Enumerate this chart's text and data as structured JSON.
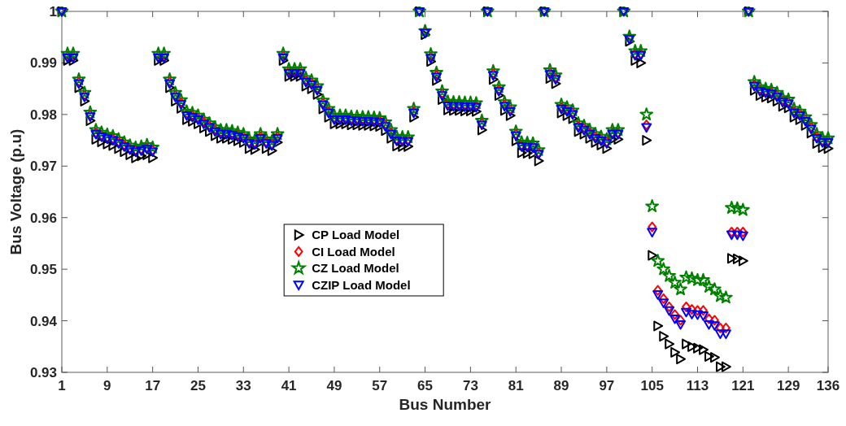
{
  "chart_data": {
    "type": "scatter",
    "xlabel": "Bus Number",
    "ylabel": "Bus Voltage (p.u)",
    "xlim": [
      1,
      136
    ],
    "xticks": [
      1,
      9,
      17,
      25,
      33,
      41,
      49,
      57,
      65,
      73,
      81,
      89,
      97,
      105,
      113,
      121,
      129,
      136
    ],
    "ylim": [
      0.93,
      1
    ],
    "yticks": [
      0.93,
      0.94,
      0.95,
      0.96,
      0.97,
      0.98,
      0.99,
      1
    ],
    "grid": false,
    "legend": "center",
    "x": [
      1,
      2,
      3,
      4,
      5,
      6,
      7,
      8,
      9,
      10,
      11,
      12,
      13,
      14,
      15,
      16,
      17,
      18,
      19,
      20,
      21,
      22,
      23,
      24,
      25,
      26,
      27,
      28,
      29,
      30,
      31,
      32,
      33,
      34,
      35,
      36,
      37,
      38,
      39,
      40,
      41,
      42,
      43,
      44,
      45,
      46,
      47,
      48,
      49,
      50,
      51,
      52,
      53,
      54,
      55,
      56,
      57,
      58,
      59,
      60,
      61,
      62,
      63,
      64,
      65,
      66,
      67,
      68,
      69,
      70,
      71,
      72,
      73,
      74,
      75,
      76,
      77,
      78,
      79,
      80,
      81,
      82,
      83,
      84,
      85,
      86,
      87,
      88,
      89,
      90,
      91,
      92,
      93,
      94,
      95,
      96,
      97,
      98,
      99,
      100,
      101,
      102,
      103,
      104,
      105,
      106,
      107,
      108,
      109,
      110,
      111,
      112,
      113,
      114,
      115,
      116,
      117,
      118,
      119,
      120,
      121,
      122,
      123,
      124,
      125,
      126,
      127,
      128,
      129,
      130,
      131,
      132,
      133,
      134,
      135,
      136
    ],
    "series": [
      {
        "name": "CP Load Model",
        "color": "#000000",
        "marker": "triangle-right",
        "values": [
          1,
          0.9905,
          0.9905,
          0.9852,
          0.9826,
          0.9788,
          0.9752,
          0.9747,
          0.9743,
          0.974,
          0.9734,
          0.9728,
          0.9722,
          0.9716,
          0.972,
          0.9722,
          0.9716,
          0.9905,
          0.9905,
          0.9852,
          0.9826,
          0.9812,
          0.979,
          0.9787,
          0.9782,
          0.9774,
          0.9767,
          0.9759,
          0.9754,
          0.9754,
          0.9752,
          0.9749,
          0.9746,
          0.9734,
          0.9732,
          0.9746,
          0.9734,
          0.973,
          0.9746,
          0.9905,
          0.9874,
          0.9874,
          0.9874,
          0.9855,
          0.985,
          0.9839,
          0.9811,
          0.9795,
          0.9782,
          0.9782,
          0.9782,
          0.978,
          0.978,
          0.9779,
          0.9779,
          0.9778,
          0.9777,
          0.9769,
          0.9754,
          0.9739,
          0.9738,
          0.9738,
          0.9795,
          1,
          0.9955,
          0.9903,
          0.9866,
          0.9829,
          0.9809,
          0.9808,
          0.9808,
          0.9807,
          0.9807,
          0.9806,
          0.977,
          1,
          0.9868,
          0.9837,
          0.9808,
          0.9798,
          0.9749,
          0.9726,
          0.9725,
          0.9724,
          0.971,
          1,
          0.987,
          0.986,
          0.9803,
          0.9798,
          0.9792,
          0.9767,
          0.9762,
          0.9754,
          0.9746,
          0.9741,
          0.9734,
          0.9752,
          0.9752,
          1,
          0.9942,
          0.9905,
          0.99,
          0.975,
          0.9527,
          0.939,
          0.937,
          0.9355,
          0.9339,
          0.9326,
          0.9355,
          0.935,
          0.9347,
          0.9344,
          0.9331,
          0.9329,
          0.9311,
          0.9311,
          0.9521,
          0.952,
          0.9516,
          1,
          0.9847,
          0.9837,
          0.9834,
          0.9832,
          0.9826,
          0.9816,
          0.9813,
          0.9795,
          0.979,
          0.9779,
          0.9764,
          0.9744,
          0.9736,
          0.9734
        ]
      },
      {
        "name": "CI Load Model",
        "color": "#ff0000",
        "marker": "diamond",
        "values": [
          1,
          0.9913,
          0.9913,
          0.9863,
          0.9837,
          0.9799,
          0.9765,
          0.976,
          0.9756,
          0.9753,
          0.9747,
          0.9741,
          0.9735,
          0.9731,
          0.9733,
          0.9736,
          0.9731,
          0.9913,
          0.9913,
          0.9863,
          0.9837,
          0.9823,
          0.9801,
          0.9798,
          0.9793,
          0.9785,
          0.9778,
          0.977,
          0.9765,
          0.9765,
          0.9763,
          0.976,
          0.9757,
          0.9747,
          0.9745,
          0.9757,
          0.9747,
          0.9743,
          0.9757,
          0.9913,
          0.9883,
          0.9883,
          0.9883,
          0.9866,
          0.9861,
          0.985,
          0.9822,
          0.9806,
          0.9793,
          0.9793,
          0.9793,
          0.9791,
          0.9791,
          0.979,
          0.979,
          0.9789,
          0.9788,
          0.978,
          0.9765,
          0.9752,
          0.9751,
          0.9751,
          0.9806,
          null,
          0.996,
          0.9912,
          0.9876,
          0.984,
          0.982,
          0.9819,
          0.9819,
          0.9818,
          0.9818,
          0.9817,
          0.9783,
          1,
          0.9879,
          0.9848,
          0.9819,
          0.9809,
          0.9762,
          0.9741,
          0.974,
          0.9739,
          0.9726,
          1,
          0.9881,
          0.9871,
          0.9814,
          0.9809,
          0.9803,
          0.9778,
          0.9773,
          0.9765,
          0.9757,
          0.9752,
          0.9747,
          0.9765,
          0.9765,
          null,
          0.9948,
          0.9918,
          0.9918,
          0.978,
          0.9582,
          0.9459,
          0.9443,
          0.9427,
          0.9412,
          0.9401,
          0.9427,
          0.9422,
          0.942,
          0.942,
          0.9404,
          0.9401,
          0.9386,
          0.9386,
          0.9572,
          0.9572,
          0.9572,
          1,
          0.9858,
          0.9848,
          0.9845,
          0.9843,
          0.9837,
          0.9827,
          0.9824,
          0.9806,
          0.9801,
          0.979,
          0.9775,
          0.9757,
          0.9749,
          0.9749
        ]
      },
      {
        "name": "CZ Load Model",
        "color": "#008000",
        "marker": "star",
        "values": [
          1,
          0.9918,
          0.9918,
          0.9868,
          0.9842,
          0.9804,
          0.977,
          0.9765,
          0.9761,
          0.9758,
          0.9752,
          0.9746,
          0.974,
          0.9736,
          0.9738,
          0.9741,
          0.9736,
          0.9918,
          0.9918,
          0.9868,
          0.9842,
          0.9828,
          0.9806,
          0.9803,
          0.9798,
          0.979,
          0.9783,
          0.9775,
          0.977,
          0.977,
          0.9768,
          0.9765,
          0.9762,
          0.9752,
          0.975,
          0.9762,
          0.9752,
          0.9748,
          0.9762,
          0.9918,
          0.9888,
          0.9888,
          0.9888,
          0.9871,
          0.9866,
          0.9855,
          0.9827,
          0.9811,
          0.9798,
          0.9798,
          0.9798,
          0.9796,
          0.9796,
          0.9795,
          0.9795,
          0.9794,
          0.9793,
          0.9785,
          0.977,
          0.9757,
          0.9756,
          0.9756,
          0.9811,
          1,
          0.9962,
          0.9917,
          0.9881,
          0.9845,
          0.9825,
          0.9824,
          0.9824,
          0.9823,
          0.9823,
          0.9822,
          0.9788,
          1,
          0.9884,
          0.9853,
          0.9824,
          0.9814,
          0.9767,
          0.9746,
          0.9745,
          0.9744,
          0.9731,
          1,
          0.9886,
          0.9876,
          0.9819,
          0.9814,
          0.9808,
          0.9783,
          0.9778,
          0.977,
          0.9762,
          0.9757,
          0.9752,
          0.977,
          0.977,
          1,
          0.9951,
          0.9923,
          0.9923,
          0.98,
          0.9622,
          0.9516,
          0.95,
          0.9487,
          0.9474,
          0.9461,
          0.9484,
          0.9482,
          0.9479,
          0.9479,
          0.9466,
          0.9461,
          0.9448,
          0.9445,
          0.9619,
          0.9618,
          0.9615,
          1,
          0.9863,
          0.9853,
          0.985,
          0.9848,
          0.9842,
          0.9832,
          0.9829,
          0.9811,
          0.9806,
          0.9795,
          0.978,
          0.9762,
          0.9754,
          0.9754
        ]
      },
      {
        "name": "CZIP Load Model",
        "color": "#0000ff",
        "marker": "triangle-down",
        "values": [
          1,
          0.991,
          0.991,
          0.986,
          0.9834,
          0.9796,
          0.9762,
          0.9757,
          0.9753,
          0.975,
          0.9744,
          0.9738,
          0.9732,
          0.9728,
          0.973,
          0.9733,
          0.9728,
          0.991,
          0.991,
          0.986,
          0.9834,
          0.982,
          0.9798,
          0.9795,
          0.979,
          0.9782,
          0.9775,
          0.9767,
          0.9762,
          0.9762,
          0.976,
          0.9757,
          0.9754,
          0.9744,
          0.9742,
          0.9754,
          0.9744,
          0.974,
          0.9754,
          0.991,
          0.988,
          0.988,
          0.988,
          0.9863,
          0.9858,
          0.9847,
          0.9819,
          0.9803,
          0.979,
          0.979,
          0.979,
          0.9788,
          0.9788,
          0.9787,
          0.9787,
          0.9786,
          0.9785,
          0.9777,
          0.9762,
          0.9749,
          0.9748,
          0.9748,
          0.9803,
          1,
          0.9958,
          0.9909,
          0.9873,
          0.9837,
          0.9817,
          0.9816,
          0.9816,
          0.9815,
          0.9815,
          0.9814,
          0.978,
          1,
          0.9876,
          0.9845,
          0.9816,
          0.9806,
          0.9759,
          0.9738,
          0.9737,
          0.9736,
          0.9723,
          1,
          0.9878,
          0.9868,
          0.9811,
          0.9806,
          0.98,
          0.9775,
          0.977,
          0.9762,
          0.9754,
          0.9749,
          0.9744,
          0.9762,
          0.9762,
          1,
          0.9946,
          0.9915,
          0.9915,
          0.9775,
          0.9572,
          0.9451,
          0.9435,
          0.942,
          0.9404,
          0.9393,
          0.9417,
          0.9413,
          0.9412,
          0.941,
          0.9393,
          0.9391,
          0.9375,
          0.9375,
          0.9567,
          0.9567,
          0.9565,
          1,
          0.9855,
          0.9845,
          0.9842,
          0.984,
          0.9834,
          0.9824,
          0.9821,
          0.9803,
          0.9798,
          0.9787,
          0.9772,
          0.9754,
          0.9746,
          0.9746
        ]
      }
    ]
  }
}
